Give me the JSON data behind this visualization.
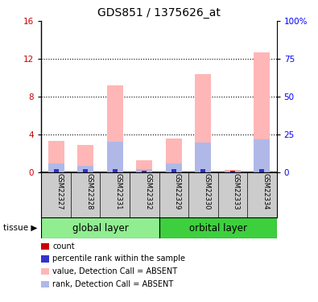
{
  "title": "GDS851 / 1375626_at",
  "samples": [
    "GSM22327",
    "GSM22328",
    "GSM22331",
    "GSM22332",
    "GSM22329",
    "GSM22330",
    "GSM22333",
    "GSM22334"
  ],
  "left_ylim": [
    0,
    16
  ],
  "right_ylim": [
    0,
    100
  ],
  "left_yticks": [
    0,
    4,
    8,
    12,
    16
  ],
  "right_yticks": [
    0,
    25,
    50,
    75,
    100
  ],
  "right_yticklabels": [
    "0",
    "25",
    "50",
    "75",
    "100%"
  ],
  "pink_bars": [
    3.3,
    2.9,
    9.2,
    1.3,
    3.6,
    10.4,
    0.25,
    12.7
  ],
  "blue_bars": [
    0.9,
    0.7,
    3.2,
    0.35,
    0.9,
    3.1,
    0.15,
    3.5
  ],
  "red_bars": [
    0.18,
    0.18,
    0.18,
    0.18,
    0.18,
    0.18,
    0.18,
    0.18
  ],
  "dark_blue_bars": [
    0.28,
    0.28,
    0.28,
    0.1,
    0.28,
    0.28,
    0.1,
    0.28
  ],
  "bar_width": 0.55,
  "color_pink": "#ffb6b6",
  "color_light_blue": "#b0b8e8",
  "color_red": "#cc0000",
  "color_blue": "#3333cc",
  "legend_items": [
    {
      "color": "#cc0000",
      "label": "count"
    },
    {
      "color": "#3333cc",
      "label": "percentile rank within the sample"
    },
    {
      "color": "#ffb6b6",
      "label": "value, Detection Call = ABSENT"
    },
    {
      "color": "#b0b8e8",
      "label": "rank, Detection Call = ABSENT"
    }
  ],
  "sample_box_color": "#cccccc",
  "dotted_grid_values": [
    4,
    8,
    12
  ],
  "bg_color": "#ffffff",
  "global_color": "#90ee90",
  "orbital_color": "#3ecf3e"
}
